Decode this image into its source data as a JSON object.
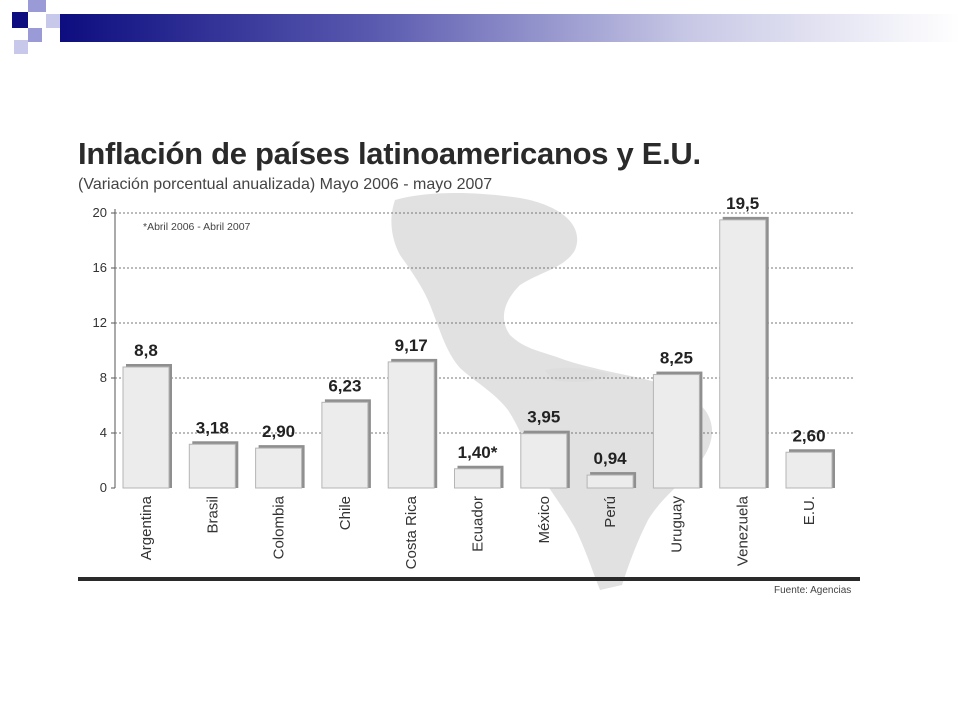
{
  "chart_data": {
    "type": "bar",
    "title": "Inflación de países latinoamericanos y E.U.",
    "subtitle": "(Variación porcentual anualizada) Mayo 2006 - mayo 2007",
    "note": "*Abril 2006 - Abril 2007",
    "source": "Fuente: Agencias",
    "categories": [
      "Argentina",
      "Brasil",
      "Colombia",
      "Chile",
      "Costa Rica",
      "Ecuador",
      "México",
      "Perú",
      "Uruguay",
      "Venezuela",
      "E.U."
    ],
    "values": [
      8.8,
      3.18,
      2.9,
      6.23,
      9.17,
      1.4,
      3.95,
      0.94,
      8.25,
      19.5,
      2.6
    ],
    "value_labels": [
      "8,8",
      "3,18",
      "2,90",
      "6,23",
      "9,17",
      "1,40*",
      "3,95",
      "0,94",
      "8,25",
      "19,5",
      "2,60"
    ],
    "yticks": [
      "0",
      "4",
      "8",
      "12",
      "16",
      "20"
    ],
    "ylim": [
      0,
      20
    ],
    "grid": true,
    "colors": {
      "bar_fill": "#ececec",
      "bar_stroke": "#b5b5b5",
      "bar_shadow": "#8f8f8f",
      "map": "#dcdcdc",
      "rule": "#2a2a2a"
    }
  }
}
